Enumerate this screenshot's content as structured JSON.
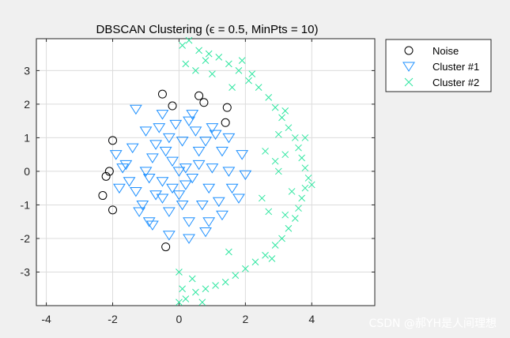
{
  "chart_data": {
    "type": "scatter",
    "title": "DBSCAN Clustering (ϵ = 0.5, MinPts = 10)",
    "xlabel": "",
    "ylabel": "",
    "xlim": [
      -4.3,
      5.9
    ],
    "ylim": [
      -4.0,
      3.95
    ],
    "xticks": [
      -4,
      -2,
      0,
      2,
      4
    ],
    "yticks": [
      -3,
      -2,
      -1,
      0,
      1,
      2,
      3
    ],
    "grid": true,
    "legend_position": "outside-top-right",
    "series": [
      {
        "name": "Noise",
        "marker": "circle",
        "color": "#000000",
        "points": [
          [
            -0.5,
            2.3
          ],
          [
            -0.2,
            1.95
          ],
          [
            0.6,
            2.25
          ],
          [
            0.75,
            2.05
          ],
          [
            1.45,
            1.9
          ],
          [
            1.4,
            1.45
          ],
          [
            -2.0,
            0.92
          ],
          [
            -2.1,
            0.0
          ],
          [
            -2.2,
            -0.15
          ],
          [
            -2.3,
            -0.72
          ],
          [
            -2.0,
            -1.15
          ],
          [
            -0.4,
            -2.25
          ]
        ]
      },
      {
        "name": "Cluster #1",
        "marker": "triangle-down",
        "color": "#1e90ff",
        "points": [
          [
            -1.3,
            1.85
          ],
          [
            -0.5,
            1.7
          ],
          [
            0.3,
            1.5
          ],
          [
            1.0,
            1.3
          ],
          [
            1.5,
            1.0
          ],
          [
            -1.9,
            0.5
          ],
          [
            -1.8,
            -0.5
          ],
          [
            -1.6,
            0.2
          ],
          [
            -1.0,
            1.2
          ],
          [
            -1.2,
            -1.2
          ],
          [
            -0.8,
            -1.6
          ],
          [
            -0.3,
            -1.9
          ],
          [
            0.3,
            -2.0
          ],
          [
            0.8,
            -1.8
          ],
          [
            1.3,
            -1.3
          ],
          [
            1.8,
            -0.8
          ],
          [
            2.0,
            -0.1
          ],
          [
            1.9,
            0.5
          ],
          [
            0.2,
            0.1
          ],
          [
            -0.2,
            0.3
          ],
          [
            0.4,
            -0.2
          ],
          [
            -0.5,
            -0.3
          ],
          [
            0.6,
            0.6
          ],
          [
            -0.7,
            0.8
          ],
          [
            0.0,
            -0.7
          ],
          [
            -1.0,
            0.0
          ],
          [
            1.0,
            0.1
          ],
          [
            0.1,
            0.9
          ],
          [
            -0.3,
            -1.2
          ],
          [
            0.7,
            -1.0
          ],
          [
            -1.3,
            -0.6
          ],
          [
            1.3,
            0.6
          ],
          [
            -0.8,
            0.4
          ],
          [
            0.5,
            1.2
          ],
          [
            -0.5,
            -0.8
          ],
          [
            0.9,
            -0.5
          ],
          [
            -1.4,
            0.7
          ],
          [
            1.2,
            -0.9
          ],
          [
            -0.1,
            1.4
          ],
          [
            0.3,
            -1.5
          ],
          [
            -0.9,
            -0.2
          ],
          [
            1.5,
            0.0
          ],
          [
            -0.6,
            1.3
          ],
          [
            0.8,
            0.9
          ],
          [
            -1.1,
            -1.0
          ],
          [
            0.0,
            0.0
          ],
          [
            0.2,
            -0.4
          ],
          [
            -0.4,
            0.6
          ],
          [
            0.6,
            0.2
          ],
          [
            -0.2,
            -0.5
          ],
          [
            1.1,
            1.1
          ],
          [
            -1.5,
            -0.3
          ],
          [
            0.4,
            1.7
          ],
          [
            -0.9,
            -1.5
          ],
          [
            1.6,
            -0.5
          ],
          [
            -1.7,
            0.1
          ],
          [
            0.9,
            -1.5
          ],
          [
            -0.3,
            1.0
          ],
          [
            0.1,
            -1.0
          ],
          [
            -0.7,
            -0.7
          ]
        ]
      },
      {
        "name": "Cluster #2",
        "marker": "x",
        "color": "#2ee6a0",
        "points": [
          [
            0.1,
            3.75
          ],
          [
            0.3,
            3.9
          ],
          [
            0.6,
            3.6
          ],
          [
            0.9,
            3.5
          ],
          [
            1.2,
            3.4
          ],
          [
            1.5,
            3.2
          ],
          [
            1.8,
            3.0
          ],
          [
            2.1,
            2.7
          ],
          [
            2.4,
            2.5
          ],
          [
            2.7,
            2.2
          ],
          [
            2.9,
            1.9
          ],
          [
            3.1,
            1.6
          ],
          [
            3.3,
            1.3
          ],
          [
            3.5,
            1.0
          ],
          [
            3.6,
            0.7
          ],
          [
            3.7,
            0.4
          ],
          [
            3.8,
            0.1
          ],
          [
            3.9,
            -0.2
          ],
          [
            3.8,
            -0.5
          ],
          [
            3.7,
            -0.8
          ],
          [
            3.6,
            -1.1
          ],
          [
            3.5,
            -1.4
          ],
          [
            3.3,
            -1.7
          ],
          [
            3.1,
            -2.0
          ],
          [
            2.9,
            -2.2
          ],
          [
            2.6,
            -2.5
          ],
          [
            2.3,
            -2.7
          ],
          [
            2.0,
            -2.9
          ],
          [
            1.7,
            -3.1
          ],
          [
            1.4,
            -3.3
          ],
          [
            1.1,
            -3.4
          ],
          [
            0.8,
            -3.5
          ],
          [
            0.5,
            -3.6
          ],
          [
            0.2,
            -3.8
          ],
          [
            0.0,
            -3.0
          ],
          [
            0.4,
            -3.2
          ],
          [
            0.1,
            -3.5
          ],
          [
            3.0,
            0.0
          ],
          [
            3.2,
            0.5
          ],
          [
            2.6,
            0.6
          ],
          [
            3.4,
            -0.6
          ],
          [
            2.7,
            -1.2
          ],
          [
            3.2,
            1.8
          ],
          [
            2.2,
            2.9
          ],
          [
            1.6,
            2.5
          ],
          [
            2.8,
            -2.6
          ],
          [
            1.5,
            -2.4
          ],
          [
            0.7,
            -3.9
          ],
          [
            0.2,
            3.2
          ],
          [
            0.8,
            3.3
          ],
          [
            1.0,
            2.9
          ],
          [
            3.0,
            1.1
          ],
          [
            3.2,
            -1.3
          ],
          [
            2.9,
            0.3
          ],
          [
            3.8,
            1.0
          ],
          [
            4.0,
            -0.4
          ],
          [
            2.5,
            -0.8
          ],
          [
            1.9,
            3.3
          ],
          [
            0.5,
            3.0
          ],
          [
            0.0,
            -3.9
          ]
        ]
      }
    ]
  },
  "watermark": "CSDN @郝YH是人间理想"
}
